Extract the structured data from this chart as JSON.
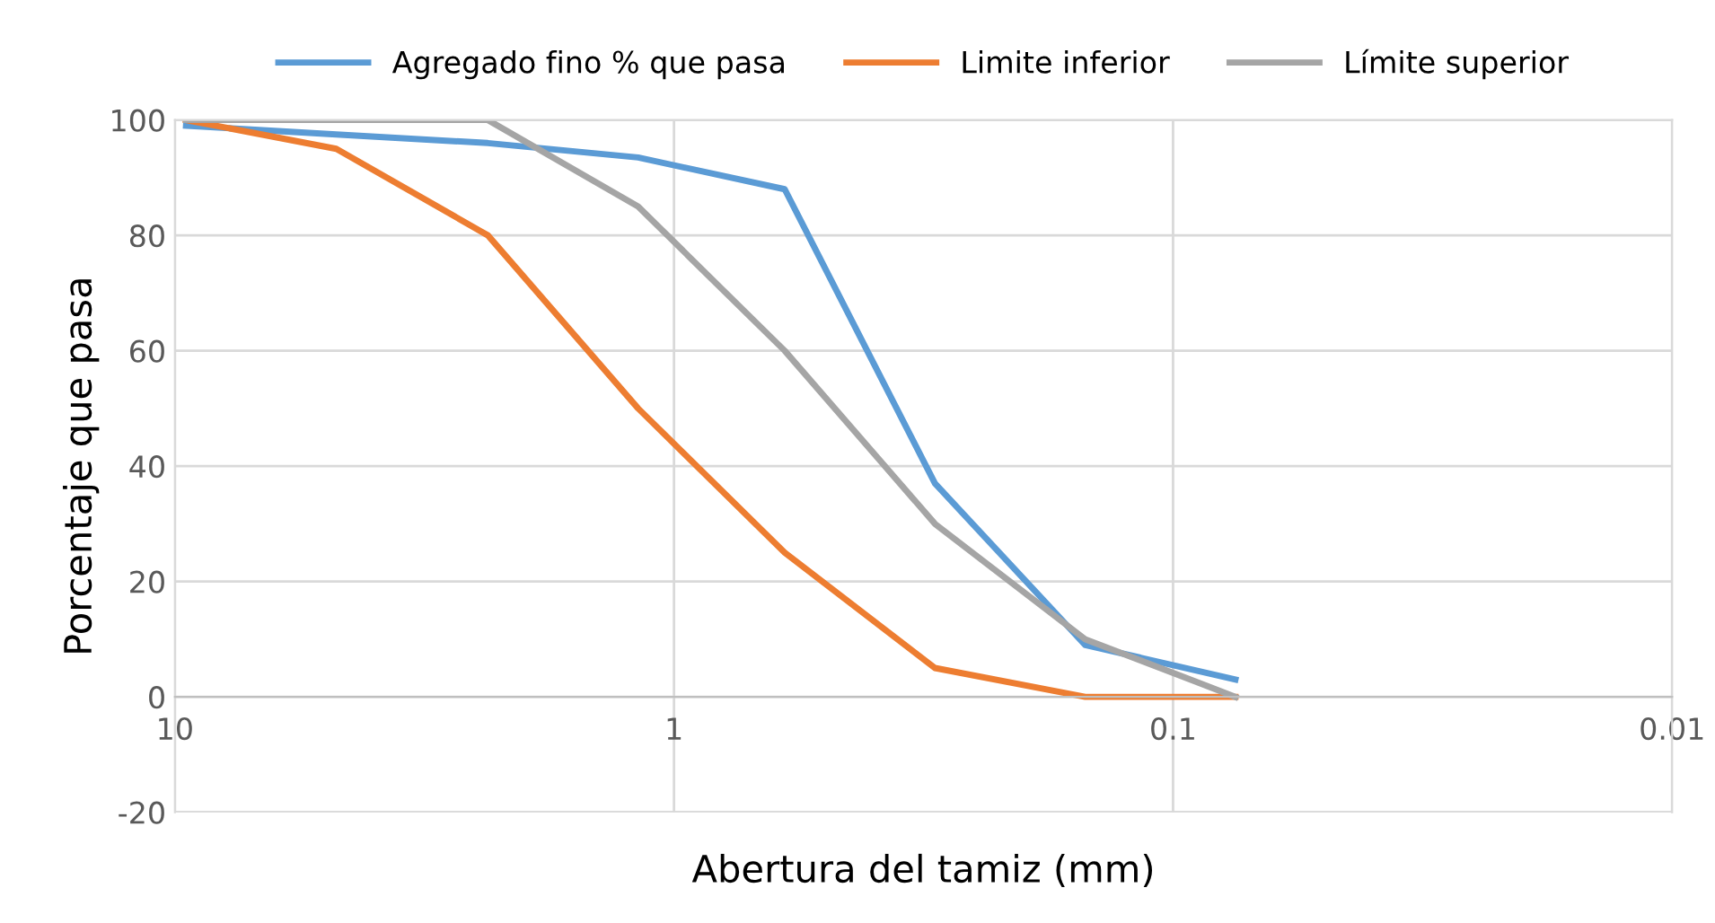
{
  "chart_data": {
    "type": "line",
    "xlabel": "Abertura del tamiz (mm)",
    "ylabel": "Porcentaje que pasa",
    "x": [
      9.5,
      4.75,
      2.36,
      1.18,
      0.6,
      0.3,
      0.15,
      0.075
    ],
    "series": [
      {
        "name": "Agregado fino % que pasa",
        "color": "#5b9bd5",
        "values": [
          99,
          97.5,
          96,
          93.5,
          88,
          37,
          9,
          3
        ]
      },
      {
        "name": "Limite inferior",
        "color": "#ed7d31",
        "values": [
          100,
          95,
          80,
          50,
          25,
          5,
          0,
          0
        ]
      },
      {
        "name": "Límite superior",
        "color": "#a5a5a5",
        "values": [
          100,
          100,
          100,
          85,
          60,
          30,
          10,
          0
        ]
      }
    ],
    "log": "x",
    "xlim": [
      10,
      0.01
    ],
    "xticks": [
      10,
      1,
      0.1,
      0.01
    ],
    "ylim": [
      -20,
      100
    ],
    "yticks": [
      -20,
      0,
      20,
      40,
      60,
      80,
      100
    ],
    "grid": true,
    "legend": "top",
    "marker": "none",
    "line_style": "solid"
  }
}
